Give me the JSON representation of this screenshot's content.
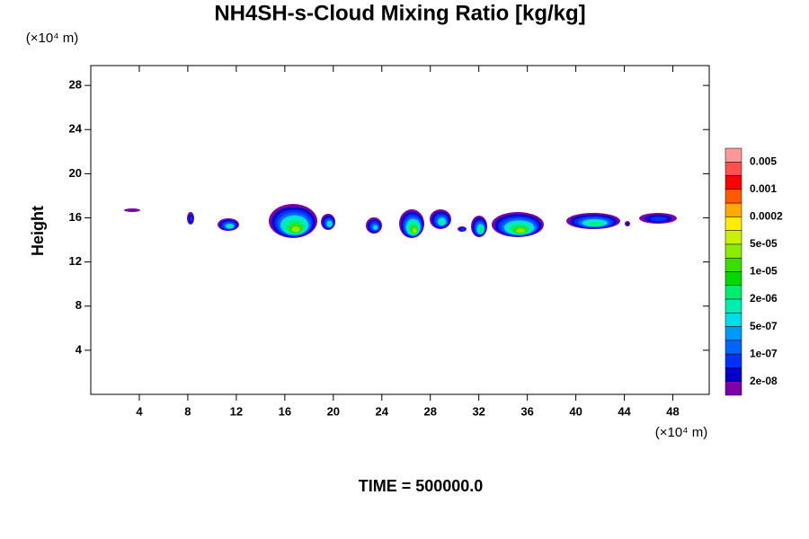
{
  "chart_data": {
    "type": "contour",
    "title": "NH4SH-s-Cloud Mixing Ratio [kg/kg]",
    "x_unit": "(×10⁴ m)",
    "y_unit": "(×10⁴ m)",
    "ylabel": "Height",
    "footer": "TIME = 500000.0",
    "xlim": [
      0,
      51
    ],
    "xticks": [
      4,
      8,
      12,
      16,
      20,
      24,
      28,
      32,
      36,
      40,
      44,
      48
    ],
    "ylim": [
      0,
      29.8
    ],
    "yticks": [
      4,
      8,
      12,
      16,
      20,
      24,
      28
    ],
    "colorbar": {
      "colors": [
        "#ff9999",
        "#ff5050",
        "#ff0000",
        "#ff5a00",
        "#ffaa00",
        "#ffee00",
        "#c8f000",
        "#8cec00",
        "#3cdc00",
        "#00d800",
        "#00ee70",
        "#00eeb0",
        "#00dce8",
        "#0098ff",
        "#0064ff",
        "#0030ff",
        "#0000c8",
        "#7a00aa"
      ],
      "ticks": [
        0.005,
        0.001,
        0.0002,
        {
          "value": 5e-05,
          "label": "5e-05"
        },
        {
          "value": 1e-05,
          "label": "1e-05"
        },
        {
          "value": 2e-06,
          "label": "2e-06"
        },
        {
          "value": 5e-07,
          "label": "5e-07"
        },
        {
          "value": 1e-07,
          "label": "1e-07"
        },
        {
          "value": 2e-08,
          "label": "2e-08"
        }
      ]
    }
  }
}
